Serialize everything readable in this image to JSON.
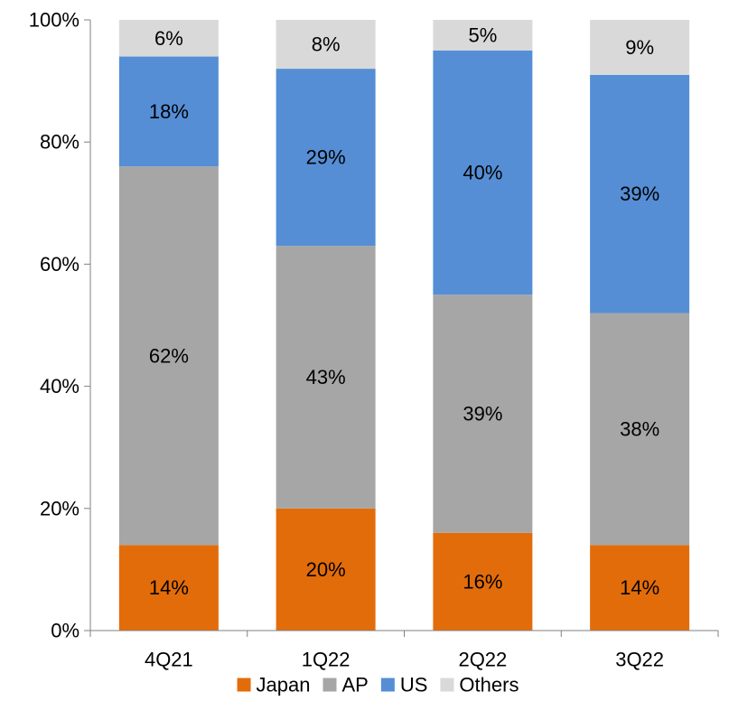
{
  "chart_data": {
    "type": "bar",
    "stacked": true,
    "percent_stacked": true,
    "categories": [
      "4Q21",
      "1Q22",
      "2Q22",
      "3Q22"
    ],
    "series": [
      {
        "name": "Japan",
        "color": "#E36C0A",
        "values": [
          14,
          20,
          16,
          14
        ]
      },
      {
        "name": "AP",
        "color": "#A6A6A6",
        "values": [
          62,
          43,
          39,
          38
        ]
      },
      {
        "name": "US",
        "color": "#558ED5",
        "values": [
          18,
          29,
          40,
          39
        ]
      },
      {
        "name": "Others",
        "color": "#D9D9D9",
        "values": [
          6,
          8,
          5,
          9
        ]
      }
    ],
    "y_ticks": [
      "0%",
      "20%",
      "40%",
      "60%",
      "80%",
      "100%"
    ],
    "ylim": [
      0,
      100
    ],
    "grid": false,
    "legend_position": "bottom",
    "title": "",
    "xlabel": "",
    "ylabel": ""
  }
}
